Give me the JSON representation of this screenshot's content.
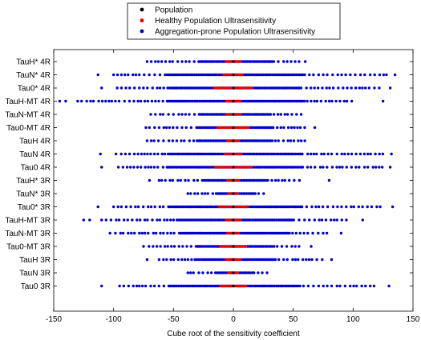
{
  "chart_data": {
    "type": "scatter",
    "title": "",
    "xlabel": "Cube root of the sensitivity coefficient",
    "ylabel": "",
    "xlim": [
      -150,
      150
    ],
    "xticks": [
      -150,
      -100,
      -50,
      0,
      50,
      100,
      150
    ],
    "grid": false,
    "legend_position": "top-center",
    "categories": [
      "TauH* 4R",
      "TauN* 4R",
      "Tau0* 4R",
      "TauH-MT 4R",
      "TauN-MT 4R",
      "Tau0-MT 4R",
      "TauH 4R",
      "TauN 4R",
      "Tau0 4R",
      "TauH* 3R",
      "TauN* 3R",
      "Tau0* 3R",
      "TauH-MT 3R",
      "TauN-MT 3R",
      "Tau0-MT 3R",
      "TauH 3R",
      "TauN 3R",
      "Tau0 3R"
    ],
    "series": [
      {
        "name": "Population",
        "color": "#000000",
        "marker": "dot"
      },
      {
        "name": "Healthy Population Ultrasensitivity",
        "color": "#e00000",
        "marker": "dot"
      },
      {
        "name": "Aggregation-prone Population Ultrasensitivity",
        "color": "#0000cc",
        "marker": "dot"
      }
    ],
    "rows": [
      {
        "label": "TauH* 4R",
        "aggregation_range": [
          -72,
          55
        ],
        "outliers": [
          60
        ],
        "healthy_range": [
          -6,
          6
        ]
      },
      {
        "label": "TauN* 4R",
        "aggregation_range": [
          -100,
          130
        ],
        "outliers": [
          -113,
          135
        ],
        "healthy_range": [
          -8,
          8
        ]
      },
      {
        "label": "Tau0* 4R",
        "aggregation_range": [
          -97,
          125
        ],
        "outliers": [
          -110,
          131
        ],
        "healthy_range": [
          -16,
          16
        ]
      },
      {
        "label": "TauH-MT 4R",
        "aggregation_range": [
          -130,
          100
        ],
        "outliers": [
          -145,
          -140,
          125
        ],
        "healthy_range": [
          -6,
          6
        ]
      },
      {
        "label": "TauN-MT 4R",
        "aggregation_range": [
          -69,
          60
        ],
        "outliers": [],
        "healthy_range": [
          -6,
          6
        ]
      },
      {
        "label": "Tau0-MT 4R",
        "aggregation_range": [
          -73,
          62
        ],
        "outliers": [
          68
        ],
        "healthy_range": [
          -13,
          13
        ]
      },
      {
        "label": "TauH 4R",
        "aggregation_range": [
          -72,
          60
        ],
        "outliers": [],
        "healthy_range": [
          -5,
          5
        ]
      },
      {
        "label": "TauN 4R",
        "aggregation_range": [
          -98,
          126
        ],
        "outliers": [
          -111,
          132
        ],
        "healthy_range": [
          -7,
          7
        ]
      },
      {
        "label": "Tau0 4R",
        "aggregation_range": [
          -96,
          127
        ],
        "outliers": [
          -110,
          131
        ],
        "healthy_range": [
          -15,
          15
        ]
      },
      {
        "label": "TauH* 3R",
        "aggregation_range": [
          -62,
          58
        ],
        "outliers": [
          -70,
          80
        ],
        "healthy_range": [
          -5,
          5
        ]
      },
      {
        "label": "TauN* 3R",
        "aggregation_range": [
          -38,
          28
        ],
        "outliers": [],
        "healthy_range": [
          -4,
          4
        ]
      },
      {
        "label": "Tau0* 3R",
        "aggregation_range": [
          -100,
          125
        ],
        "outliers": [
          -113,
          133
        ],
        "healthy_range": [
          -12,
          12
        ]
      },
      {
        "label": "TauH-MT 3R",
        "aggregation_range": [
          -110,
          95
        ],
        "outliers": [
          -125,
          -120,
          108
        ],
        "healthy_range": [
          -6,
          6
        ]
      },
      {
        "label": "TauN-MT 3R",
        "aggregation_range": [
          -103,
          80
        ],
        "outliers": [
          90
        ],
        "healthy_range": [
          -5,
          5
        ]
      },
      {
        "label": "Tau0-MT 3R",
        "aggregation_range": [
          -75,
          55
        ],
        "outliers": [
          65
        ],
        "healthy_range": [
          -11,
          11
        ]
      },
      {
        "label": "TauH 3R",
        "aggregation_range": [
          -62,
          75
        ],
        "outliers": [
          -72,
          82
        ],
        "healthy_range": [
          -6,
          6
        ]
      },
      {
        "label": "TauN 3R",
        "aggregation_range": [
          -38,
          30
        ],
        "outliers": [],
        "healthy_range": [
          -4,
          4
        ]
      },
      {
        "label": "Tau0 3R",
        "aggregation_range": [
          -95,
          120
        ],
        "outliers": [
          -110,
          130
        ],
        "healthy_range": [
          -11,
          11
        ]
      }
    ]
  }
}
